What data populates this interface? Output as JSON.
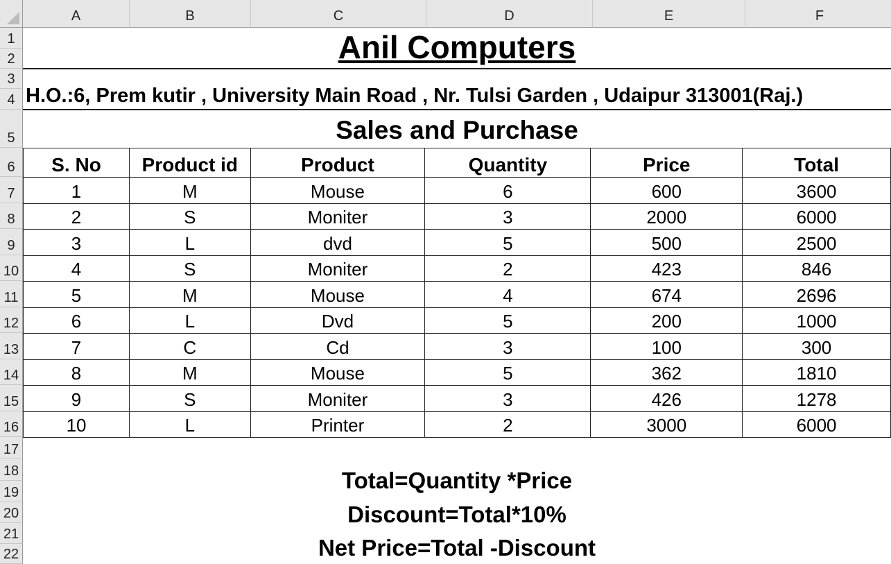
{
  "columns": [
    "A",
    "B",
    "C",
    "D",
    "E",
    "F"
  ],
  "rows": [
    "1",
    "2",
    "3",
    "4",
    "5",
    "6",
    "7",
    "8",
    "9",
    "10",
    "11",
    "12",
    "13",
    "14",
    "15",
    "16",
    "17",
    "18",
    "19",
    "20",
    "21",
    "22"
  ],
  "title": "Anil Computers ",
  "address": "H.O.:6, Prem kutir , University Main Road , Nr. Tulsi Garden , Udaipur 313001(Raj.)",
  "subtitle": "Sales and Purchase",
  "table": {
    "headers": [
      "S. No",
      "Product id",
      "Product",
      "Quantity",
      "Price",
      "Total"
    ],
    "rows": [
      [
        "1",
        "M",
        "Mouse",
        "6",
        "600",
        "3600"
      ],
      [
        "2",
        "S",
        "Moniter",
        "3",
        "2000",
        "6000"
      ],
      [
        "3",
        "L",
        "dvd",
        "5",
        "500",
        "2500"
      ],
      [
        "4",
        "S",
        "Moniter",
        "2",
        "423",
        "846"
      ],
      [
        "5",
        "M",
        "Mouse",
        "4",
        "674",
        "2696"
      ],
      [
        "6",
        "L",
        "Dvd",
        "5",
        "200",
        "1000"
      ],
      [
        "7",
        "C",
        "Cd",
        "3",
        "100",
        "300"
      ],
      [
        "8",
        "M",
        "Mouse",
        "5",
        "362",
        "1810"
      ],
      [
        "9",
        "S",
        "Moniter",
        "3",
        "426",
        "1278"
      ],
      [
        "10",
        "L",
        "Printer",
        "2",
        "3000",
        "6000"
      ]
    ]
  },
  "formulas": [
    "Total=Quantity *Price",
    "Discount=Total*10%",
    "Net Price=Total -Discount"
  ]
}
